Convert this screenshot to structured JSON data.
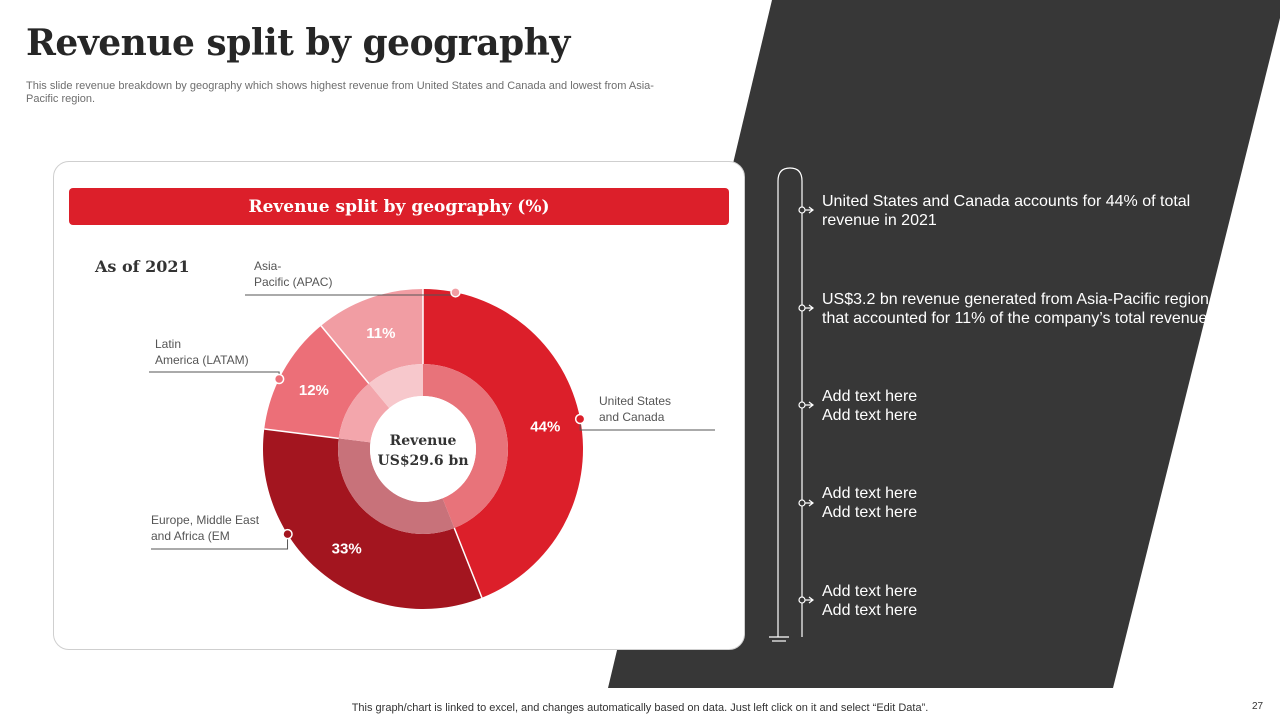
{
  "slide": {
    "title": "Revenue split by geography",
    "subtitle": "This slide revenue breakdown by geography which shows highest revenue from United States and Canada and lowest from Asia-Pacific region.",
    "footer_note": "This graph/chart is linked to excel,  and changes automatically based on data. Just left click on it and select “Edit Data”.",
    "page_number": "27"
  },
  "card": {
    "header": "Revenue split by geography (%)",
    "as_of": "As of 2021"
  },
  "chart_data": {
    "type": "pie",
    "title": "Revenue split by geography (%)",
    "center_label_line1": "Revenue",
    "center_label_line2": "US$29.6 bn",
    "unit": "%",
    "slices": [
      {
        "name": "United States and Canada",
        "label_line1": "United States",
        "label_line2": "and Canada",
        "value": 44,
        "color": "#dc1f2a",
        "inner_color": "#e8737a"
      },
      {
        "name": "Europe, Middle East and Africa (EM",
        "label_line1": "Europe, Middle East",
        "label_line2": "and Africa (EM",
        "value": 33,
        "color": "#a3151f",
        "inner_color": "#c8727a"
      },
      {
        "name": "Latin America (LATAM)",
        "label_line1": "Latin",
        "label_line2": "America (LATAM)",
        "value": 12,
        "color": "#ec6f78",
        "inner_color": "#f3a6ac"
      },
      {
        "name": "Asia-Pacific (APAC)",
        "label_line1": "Asia-",
        "label_line2": "Pacific (APAC)",
        "value": 11,
        "color": "#f19da3",
        "inner_color": "#f7c8cc"
      }
    ]
  },
  "points": [
    {
      "line1": "United States and Canada accounts for 44% of total",
      "line2": "revenue  in 2021"
    },
    {
      "line1": "US$3.2 bn revenue  generated from Asia-Pacific region",
      "line2": "that accounted for 11% of the company’s total revenue"
    },
    {
      "line1": "Add text here",
      "line2": "Add text here"
    },
    {
      "line1": "Add text here",
      "line2": "Add text here"
    },
    {
      "line1": "Add text here",
      "line2": "Add text here"
    }
  ],
  "colors": {
    "accent": "#dc1f2a",
    "dark_panel": "#373737",
    "title_text": "#262626"
  }
}
